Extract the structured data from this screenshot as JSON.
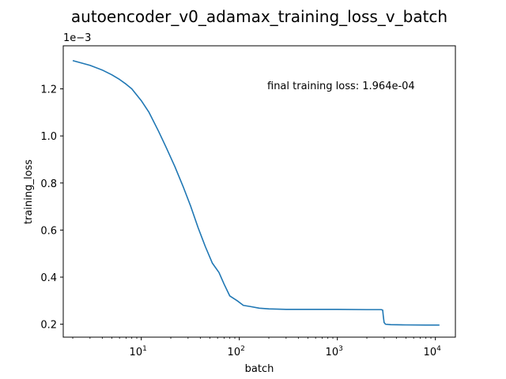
{
  "chart_data": {
    "type": "line",
    "title": "autoencoder_v0_adamax_training_loss_v_batch",
    "xlabel": "batch",
    "ylabel": "training_loss",
    "x_scale": "log",
    "xlim": [
      1.6,
      16000
    ],
    "ylim": [
      0.000145,
      0.001383
    ],
    "y_offset_label": "1e−3",
    "x_ticks": [
      {
        "value": 10,
        "base": "10",
        "exp": "1"
      },
      {
        "value": 100,
        "base": "10",
        "exp": "2"
      },
      {
        "value": 1000,
        "base": "10",
        "exp": "3"
      },
      {
        "value": 10000,
        "base": "10",
        "exp": "4"
      }
    ],
    "y_ticks": [
      {
        "value": 0.0002,
        "label": "0.2"
      },
      {
        "value": 0.0004,
        "label": "0.4"
      },
      {
        "value": 0.0006,
        "label": "0.6"
      },
      {
        "value": 0.0008,
        "label": "0.8"
      },
      {
        "value": 0.001,
        "label": "1.0"
      },
      {
        "value": 0.0012,
        "label": "1.2"
      }
    ],
    "grid": false,
    "annotation": "final training loss: 1.964e-04",
    "series": [
      {
        "color": "#1f77b4",
        "points": [
          [
            2,
            0.00132
          ],
          [
            3,
            0.0013
          ],
          [
            4,
            0.00128
          ],
          [
            5,
            0.00126
          ],
          [
            6,
            0.00124
          ],
          [
            7,
            0.00122
          ],
          [
            8,
            0.0012
          ],
          [
            10,
            0.00115
          ],
          [
            12,
            0.0011
          ],
          [
            15,
            0.00102
          ],
          [
            18,
            0.00095
          ],
          [
            22,
            0.00087
          ],
          [
            27,
            0.00078
          ],
          [
            32,
            0.0007
          ],
          [
            38,
            0.00061
          ],
          [
            45,
            0.00053
          ],
          [
            53,
            0.00046
          ],
          [
            62,
            0.00042
          ],
          [
            70,
            0.00037
          ],
          [
            80,
            0.00032
          ],
          [
            95,
            0.0003
          ],
          [
            110,
            0.00028
          ],
          [
            130,
            0.000275
          ],
          [
            160,
            0.000268
          ],
          [
            200,
            0.000265
          ],
          [
            300,
            0.000263
          ],
          [
            500,
            0.000263
          ],
          [
            1000,
            0.000263
          ],
          [
            2000,
            0.000262
          ],
          [
            2800,
            0.000262
          ],
          [
            2900,
            0.00026
          ],
          [
            2950,
            0.00023
          ],
          [
            3000,
            0.000207
          ],
          [
            3100,
            0.0002
          ],
          [
            3500,
            0.000198
          ],
          [
            5000,
            0.000197
          ],
          [
            8000,
            0.0001965
          ],
          [
            11000,
            0.0001964
          ]
        ]
      }
    ]
  }
}
